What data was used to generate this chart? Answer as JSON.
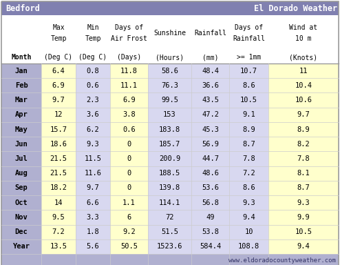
{
  "title_left": "Bedford",
  "title_right": "El Dorado Weather",
  "footer": "www.eldoradocountyweather.com",
  "header1_row1": [
    "",
    "Max",
    "Min",
    "Days of",
    "",
    "Days of",
    "Wind at"
  ],
  "header1_row2": [
    "",
    "Temp",
    "Temp",
    "Air Frost",
    "Sunshine",
    "Rainfall",
    "Rainfall",
    "10 m"
  ],
  "header2": [
    "Month",
    "(Deg C)",
    "(Deg C)",
    "(Days)",
    "(Hours)",
    "(mm)",
    ">= 1mm",
    "(Knots)"
  ],
  "months": [
    "Jan",
    "Feb",
    "Mar",
    "Apr",
    "May",
    "Jun",
    "Jul",
    "Aug",
    "Sep",
    "Oct",
    "Nov",
    "Dec",
    "Year"
  ],
  "data": [
    [
      "6.4",
      "0.8",
      "11.8",
      "58.6",
      "48.4",
      "10.7",
      "11"
    ],
    [
      "6.9",
      "0.6",
      "11.1",
      "76.3",
      "36.6",
      "8.6",
      "10.4"
    ],
    [
      "9.7",
      "2.3",
      "6.9",
      "99.5",
      "43.5",
      "10.5",
      "10.6"
    ],
    [
      "12",
      "3.6",
      "3.8",
      "153",
      "47.2",
      "9.1",
      "9.7"
    ],
    [
      "15.7",
      "6.2",
      "0.6",
      "183.8",
      "45.3",
      "8.9",
      "8.9"
    ],
    [
      "18.6",
      "9.3",
      "0",
      "185.7",
      "56.9",
      "8.7",
      "8.2"
    ],
    [
      "21.5",
      "11.5",
      "0",
      "200.9",
      "44.7",
      "7.8",
      "7.8"
    ],
    [
      "21.5",
      "11.6",
      "0",
      "188.5",
      "48.6",
      "7.2",
      "8.1"
    ],
    [
      "18.2",
      "9.7",
      "0",
      "139.8",
      "53.6",
      "8.6",
      "8.7"
    ],
    [
      "14",
      "6.6",
      "1.1",
      "114.1",
      "56.8",
      "9.3",
      "9.3"
    ],
    [
      "9.5",
      "3.3",
      "6",
      "72",
      "49",
      "9.4",
      "9.9"
    ],
    [
      "7.2",
      "1.8",
      "9.2",
      "51.5",
      "53.8",
      "10",
      "10.5"
    ],
    [
      "13.5",
      "5.6",
      "50.5",
      "1523.6",
      "584.4",
      "108.8",
      "9.4"
    ]
  ],
  "title_bg": "#8080b0",
  "title_text_color": "#ffffff",
  "month_col_bg": "#b0b0d0",
  "data_yellow_bg": "#ffffcc",
  "data_blue_bg": "#d8d8f0",
  "footer_bg": "#b0b0d0",
  "footer_text_color": "#333366",
  "header_bg": "#ffffff",
  "border_color": "#999999",
  "row_line_color": "#cccccc"
}
